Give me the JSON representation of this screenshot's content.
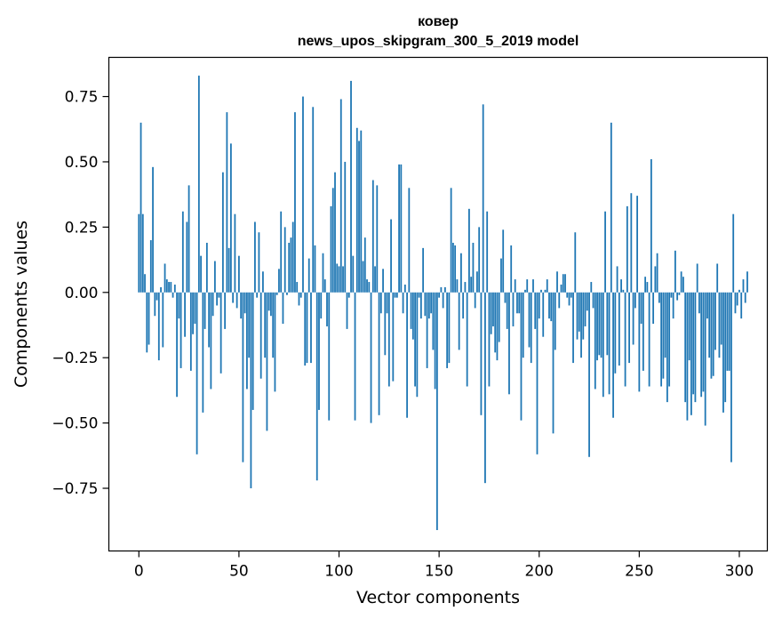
{
  "chart_data": {
    "type": "bar",
    "title": "ковер",
    "subtitle": "news_upos_skipgram_300_5_2019 model",
    "xlabel": "Vector components",
    "ylabel": "Components values",
    "xlim": [
      -15,
      314
    ],
    "ylim": [
      -0.99,
      0.9
    ],
    "xticks": [
      0,
      50,
      100,
      150,
      200,
      250,
      300
    ],
    "yticks": [
      -0.75,
      -0.5,
      -0.25,
      0.0,
      0.25,
      0.5,
      0.75
    ],
    "xtick_labels": [
      "0",
      "50",
      "100",
      "150",
      "200",
      "250",
      "300"
    ],
    "ytick_labels": [
      "−0.75",
      "−0.50",
      "−0.25",
      "0.00",
      "0.25",
      "0.50",
      "0.75"
    ],
    "bar_color": "#1f77b4",
    "values": [
      0.3,
      0.65,
      0.3,
      0.07,
      -0.23,
      -0.2,
      0.2,
      0.48,
      -0.09,
      -0.03,
      -0.26,
      0.02,
      -0.21,
      0.11,
      0.05,
      0.04,
      0.04,
      -0.02,
      0.03,
      -0.4,
      -0.1,
      -0.29,
      0.31,
      -0.17,
      0.27,
      0.41,
      -0.3,
      -0.16,
      -0.12,
      -0.62,
      0.83,
      0.14,
      -0.46,
      -0.14,
      0.19,
      -0.21,
      -0.37,
      -0.09,
      0.12,
      -0.05,
      -0.02,
      -0.31,
      0.46,
      -0.14,
      0.69,
      0.17,
      0.57,
      -0.04,
      0.3,
      -0.06,
      0.14,
      -0.1,
      -0.65,
      -0.08,
      -0.37,
      -0.25,
      -0.75,
      -0.45,
      0.27,
      -0.02,
      0.23,
      -0.33,
      0.08,
      -0.25,
      -0.53,
      -0.07,
      -0.09,
      -0.25,
      -0.38,
      -0.01,
      0.09,
      0.31,
      -0.12,
      0.25,
      -0.01,
      0.19,
      0.21,
      0.27,
      0.69,
      0.04,
      -0.05,
      -0.02,
      0.75,
      -0.28,
      -0.27,
      0.13,
      -0.27,
      0.71,
      0.18,
      -0.72,
      -0.45,
      -0.1,
      0.15,
      0.05,
      -0.13,
      -0.49,
      0.33,
      0.4,
      0.46,
      0.11,
      0.1,
      0.74,
      0.1,
      0.5,
      -0.14,
      -0.02,
      0.81,
      0.14,
      -0.49,
      0.63,
      0.58,
      0.62,
      0.12,
      0.21,
      0.05,
      0.04,
      -0.5,
      0.43,
      0.1,
      0.41,
      -0.47,
      -0.08,
      0.09,
      -0.24,
      -0.08,
      -0.36,
      0.28,
      -0.34,
      -0.02,
      -0.02,
      0.49,
      0.49,
      -0.08,
      0.03,
      -0.48,
      0.4,
      -0.14,
      -0.18,
      -0.36,
      -0.4,
      -0.02,
      -0.1,
      0.17,
      -0.09,
      -0.29,
      -0.1,
      -0.08,
      -0.22,
      -0.37,
      -0.91,
      -0.02,
      0.02,
      -0.06,
      0.02,
      -0.29,
      -0.27,
      0.4,
      0.19,
      0.18,
      0.05,
      -0.22,
      0.15,
      -0.1,
      0.04,
      -0.36,
      0.32,
      0.06,
      0.19,
      -0.06,
      0.08,
      0.25,
      -0.47,
      0.72,
      -0.73,
      0.31,
      -0.36,
      -0.16,
      -0.13,
      -0.23,
      -0.26,
      -0.19,
      0.13,
      0.24,
      -0.04,
      -0.14,
      -0.39,
      0.18,
      -0.13,
      0.05,
      -0.08,
      -0.08,
      -0.49,
      -0.25,
      0.01,
      0.05,
      -0.21,
      -0.27,
      0.05,
      -0.14,
      -0.62,
      -0.1,
      0.01,
      -0.17,
      0.01,
      0.05,
      -0.1,
      -0.11,
      -0.54,
      -0.22,
      0.08,
      -0.06,
      0.03,
      0.07,
      0.07,
      -0.02,
      -0.05,
      -0.02,
      -0.27,
      0.23,
      -0.18,
      -0.15,
      -0.25,
      -0.18,
      -0.13,
      -0.07,
      -0.63,
      0.04,
      -0.06,
      -0.37,
      -0.26,
      -0.24,
      -0.25,
      -0.4,
      0.31,
      -0.24,
      -0.39,
      0.65,
      -0.48,
      -0.31,
      0.1,
      -0.28,
      0.05,
      0.01,
      -0.36,
      0.33,
      -0.27,
      0.38,
      -0.2,
      -0.06,
      0.37,
      -0.38,
      -0.12,
      -0.3,
      0.06,
      0.04,
      -0.36,
      0.51,
      -0.12,
      0.1,
      0.15,
      -0.04,
      -0.36,
      -0.33,
      -0.25,
      -0.42,
      -0.36,
      -0.02,
      -0.1,
      0.16,
      -0.03,
      -0.01,
      0.08,
      0.06,
      -0.42,
      -0.49,
      -0.26,
      -0.47,
      -0.39,
      -0.42,
      0.11,
      -0.08,
      -0.4,
      -0.38,
      -0.51,
      -0.1,
      -0.25,
      -0.33,
      -0.32,
      -0.22,
      0.11,
      -0.25,
      -0.2,
      -0.46,
      -0.42,
      -0.3,
      -0.3,
      -0.65,
      0.3,
      -0.08,
      -0.05,
      0.01,
      -0.1,
      0.05,
      -0.04,
      0.08
    ]
  }
}
